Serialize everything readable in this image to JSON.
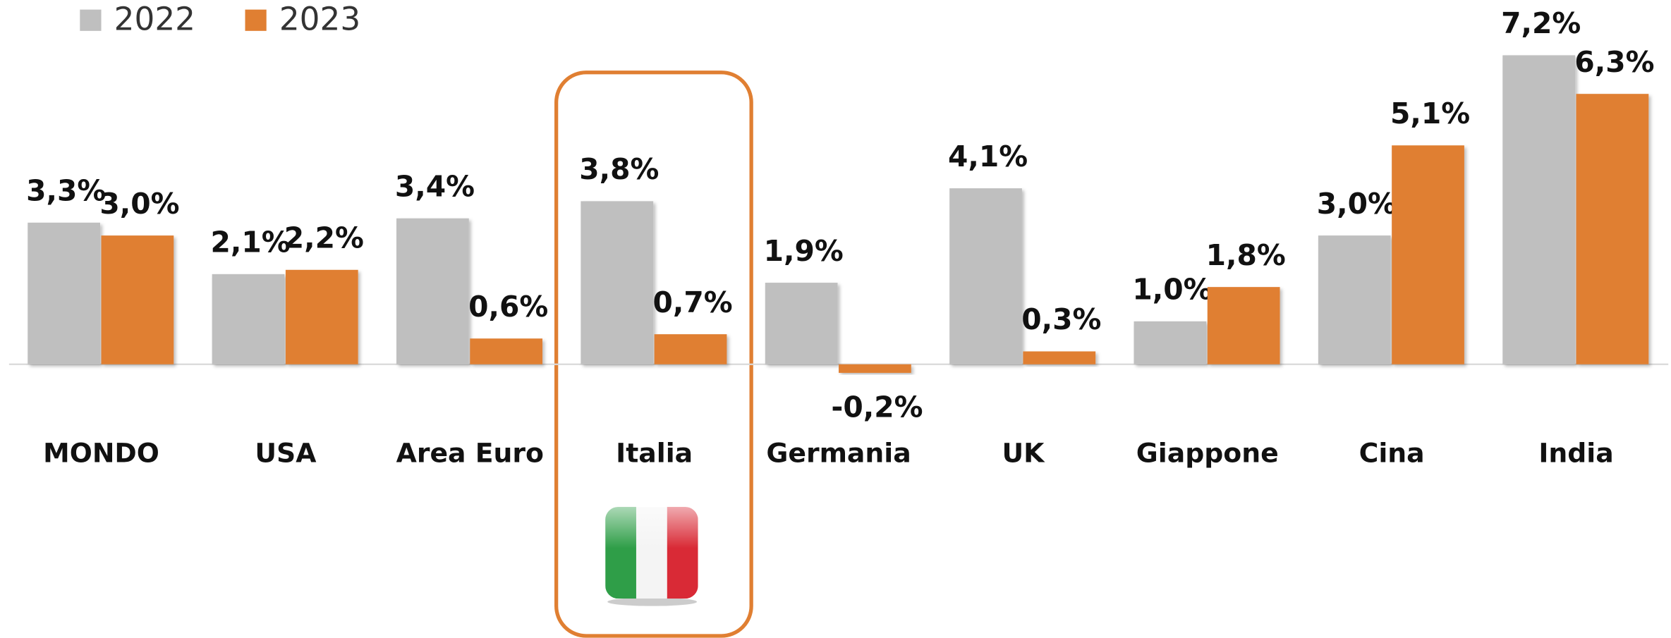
{
  "chart_data": {
    "type": "bar",
    "categories": [
      "MONDO",
      "USA",
      "Area Euro",
      "Italia",
      "Germania",
      "UK",
      "Giappone",
      "Cina",
      "India"
    ],
    "series": [
      {
        "name": "2022",
        "color": "#bfbfbf",
        "values": [
          3.3,
          2.1,
          3.4,
          3.8,
          1.9,
          4.1,
          1.0,
          3.0,
          7.2
        ],
        "value_labels": [
          "3,3%",
          "2,1%",
          "3,4%",
          "3,8%",
          "1,9%",
          "4,1%",
          "1,0%",
          "3,0%",
          "7,2%"
        ]
      },
      {
        "name": "2023",
        "color": "#e07f32",
        "values": [
          3.0,
          2.2,
          0.6,
          0.7,
          -0.2,
          0.3,
          1.8,
          5.1,
          6.3
        ],
        "value_labels": [
          "3,0%",
          "2,2%",
          "0,6%",
          "0,7%",
          "-0,2%",
          "0,3%",
          "1,8%",
          "5,1%",
          "6,3%"
        ]
      }
    ],
    "ylim": [
      -2,
      7.5
    ],
    "legend": "top-left"
  }
}
